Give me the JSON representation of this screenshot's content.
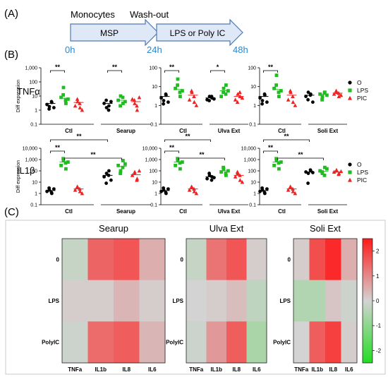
{
  "panel_labels": {
    "a": "(A)",
    "b": "(B)",
    "c": "(C)"
  },
  "timeline": {
    "start_label": "Monocytes",
    "mid_label": "Wash-out",
    "stage1": "MSP",
    "stage2": "LPS or Poly IC",
    "times": [
      "0h",
      "24h",
      "48h"
    ],
    "color_fill": "#dfe8f6",
    "color_stroke": "#4f79b5",
    "color_time": "#2e86c9"
  },
  "row_labels": {
    "tnf": "TNFα",
    "il1b": "IL1β"
  },
  "legend": {
    "items": [
      {
        "label": "O",
        "color": "#000000",
        "marker": "circle"
      },
      {
        "label": "LPS",
        "color": "#22bb22",
        "marker": "square"
      },
      {
        "label": "PIC",
        "color": "#ee2222",
        "marker": "triangle"
      }
    ]
  },
  "chart_data": [
    {
      "id": "tnf-searup",
      "type": "scatter",
      "ylabel": "Diff expression",
      "yscale": "log",
      "ylim": [
        0.1,
        1000
      ],
      "yticks": [
        "0.1",
        "1",
        "10",
        "100",
        "1,000"
      ],
      "groups": [
        "Ctl",
        "Searup"
      ],
      "series": [
        {
          "name": "O",
          "values": [
            [
              2.5,
              1.8,
              3.5,
              1.2,
              4,
              1.5
            ],
            [
              3,
              1.5,
              2,
              5,
              1,
              4
            ]
          ],
          "mean": [
            3,
            3
          ]
        },
        {
          "name": "LPS",
          "values": [
            [
              8,
              40,
              3,
              12,
              5,
              6
            ],
            [
              5,
              10,
              3,
              2,
              8,
              4
            ]
          ],
          "mean": [
            7,
            5
          ]
        },
        {
          "name": "PIC",
          "values": [
            [
              2,
              4,
              1.5,
              6,
              3,
              1
            ],
            [
              6,
              3,
              1,
              5,
              2,
              8
            ]
          ],
          "mean": [
            3.5,
            4
          ]
        }
      ],
      "annotations": [
        {
          "text": "**",
          "from": [
            0,
            0
          ],
          "to": [
            0,
            1
          ]
        },
        {
          "text": "**",
          "from": [
            1,
            0
          ],
          "to": [
            1,
            1
          ]
        }
      ]
    },
    {
      "id": "tnf-ulva",
      "type": "scatter",
      "ylabel": "",
      "yscale": "log",
      "ylim": [
        0.1,
        100
      ],
      "yticks": [
        "0.1",
        "1",
        "10",
        "100"
      ],
      "groups": [
        "Ctl",
        "Ulva Ext"
      ],
      "series": [
        {
          "name": "O",
          "values": [
            [
              2.5,
              1.8,
              3.5,
              1.2,
              4,
              1.5
            ],
            [
              2,
              3,
              2.5,
              1.8,
              3,
              2.2
            ]
          ],
          "mean": [
            3,
            2.5
          ]
        },
        {
          "name": "LPS",
          "values": [
            [
              8,
              25,
              3,
              12,
              5,
              6
            ],
            [
              3,
              8,
              12,
              5,
              4,
              6
            ]
          ],
          "mean": [
            7,
            6
          ]
        },
        {
          "name": "PIC",
          "values": [
            [
              2,
              5,
              1.5,
              6,
              3,
              1
            ],
            [
              2,
              4,
              3,
              1.5,
              5,
              2.5
            ]
          ],
          "mean": [
            3.5,
            3
          ]
        }
      ],
      "annotations": [
        {
          "text": "**",
          "from": [
            0,
            0
          ],
          "to": [
            0,
            1
          ]
        },
        {
          "text": "*",
          "from": [
            1,
            0
          ],
          "to": [
            1,
            1
          ]
        }
      ]
    },
    {
      "id": "tnf-soli",
      "type": "scatter",
      "ylabel": "",
      "yscale": "log",
      "ylim": [
        0.1,
        100
      ],
      "yticks": [
        "0.1",
        "1",
        "10",
        "100"
      ],
      "groups": [
        "Ctl",
        "Soli Ext"
      ],
      "series": [
        {
          "name": "O",
          "values": [
            [
              2.5,
              1.8,
              3.5,
              1.2,
              4,
              1.5
            ],
            [
              3,
              5,
              4,
              2,
              3.5,
              1.5
            ]
          ],
          "mean": [
            3,
            3.5
          ]
        },
        {
          "name": "LPS",
          "values": [
            [
              8,
              40,
              3,
              12,
              5,
              6
            ],
            [
              4,
              3,
              5,
              2,
              4.5,
              3.5
            ]
          ],
          "mean": [
            7,
            4
          ]
        },
        {
          "name": "PIC",
          "values": [
            [
              2,
              5,
              1.5,
              6,
              3,
              1
            ],
            [
              4,
              5,
              3,
              6,
              4.5,
              3.5
            ]
          ],
          "mean": [
            3.5,
            4.5
          ]
        }
      ],
      "annotations": [
        {
          "text": "**",
          "from": [
            0,
            0
          ],
          "to": [
            0,
            1
          ]
        }
      ]
    },
    {
      "id": "il1b-searup",
      "type": "scatter",
      "ylabel": "Diff expression",
      "yscale": "log",
      "ylim": [
        0.1,
        10000
      ],
      "yticks": [
        "0.1",
        "1",
        "10",
        "100",
        "1,000",
        "10,000"
      ],
      "groups": [
        "Ctl",
        "Searup"
      ],
      "series": [
        {
          "name": "O",
          "values": [
            [
              1.5,
              2,
              1,
              3,
              1.2,
              2.5
            ],
            [
              30,
              60,
              100,
              8,
              40,
              15
            ]
          ],
          "mean": [
            1.8,
            40
          ]
        },
        {
          "name": "LPS",
          "values": [
            [
              300,
              800,
              150,
              1200,
              500,
              600
            ],
            [
              300,
              100,
              800,
              60,
              200,
              400
            ]
          ],
          "mean": [
            600,
            250
          ]
        },
        {
          "name": "PIC",
          "values": [
            [
              2,
              3.5,
              1.5,
              4,
              2.5,
              1
            ],
            [
              40,
              80,
              20,
              60,
              15,
              100
            ]
          ],
          "mean": [
            2.5,
            45
          ]
        }
      ],
      "annotations": [
        {
          "text": "**",
          "from": [
            0,
            0
          ],
          "to": [
            0,
            1
          ]
        },
        {
          "text": "**",
          "from": [
            0,
            0
          ],
          "to": [
            1,
            0
          ]
        },
        {
          "text": "**",
          "from": [
            0,
            1
          ],
          "to": [
            1,
            1
          ]
        }
      ]
    },
    {
      "id": "il1b-ulva",
      "type": "scatter",
      "ylabel": "",
      "yscale": "log",
      "ylim": [
        0.1,
        10000
      ],
      "yticks": [
        "0.1",
        "1",
        "10",
        "100",
        "1,000",
        "10,000"
      ],
      "groups": [
        "Ctl",
        "Ulva Ext"
      ],
      "series": [
        {
          "name": "O",
          "values": [
            [
              1.5,
              2,
              1,
              3,
              1.2,
              2.5
            ],
            [
              20,
              40,
              30,
              60,
              15,
              25
            ]
          ],
          "mean": [
            1.8,
            30
          ]
        },
        {
          "name": "LPS",
          "values": [
            [
              300,
              800,
              150,
              1200,
              500,
              600
            ],
            [
              80,
              150,
              40,
              200,
              60,
              100
            ]
          ],
          "mean": [
            600,
            100
          ]
        },
        {
          "name": "PIC",
          "values": [
            [
              2,
              3.5,
              1.5,
              4,
              2.5,
              1
            ],
            [
              30,
              60,
              15,
              80,
              40,
              10
            ]
          ],
          "mean": [
            2.5,
            40
          ]
        }
      ],
      "annotations": [
        {
          "text": "**",
          "from": [
            0,
            0
          ],
          "to": [
            0,
            1
          ]
        },
        {
          "text": "**",
          "from": [
            0,
            0
          ],
          "to": [
            1,
            0
          ]
        },
        {
          "text": "**",
          "from": [
            0,
            1
          ],
          "to": [
            1,
            1
          ]
        }
      ]
    },
    {
      "id": "il1b-soli",
      "type": "scatter",
      "ylabel": "",
      "yscale": "log",
      "ylim": [
        0.1,
        10000
      ],
      "yticks": [
        "0.1",
        "1",
        "10",
        "100",
        "1,000",
        "10,000"
      ],
      "groups": [
        "Ctl",
        "Soli Ext"
      ],
      "series": [
        {
          "name": "O",
          "values": [
            [
              1.5,
              2,
              1,
              3,
              1.2,
              2.5
            ],
            [
              80,
              60,
              100,
              8,
              120,
              70
            ]
          ],
          "mean": [
            1.8,
            80
          ]
        },
        {
          "name": "LPS",
          "values": [
            [
              300,
              800,
              150,
              1200,
              500,
              600
            ],
            [
              100,
              60,
              200,
              80,
              40,
              150
            ]
          ],
          "mean": [
            600,
            90
          ]
        },
        {
          "name": "PIC",
          "values": [
            [
              2,
              3.5,
              1.5,
              4,
              2.5,
              1
            ],
            [
              80,
              120,
              60,
              100,
              50,
              90
            ]
          ],
          "mean": [
            2.5,
            80
          ]
        }
      ],
      "annotations": [
        {
          "text": "**",
          "from": [
            0,
            0
          ],
          "to": [
            0,
            1
          ]
        },
        {
          "text": "**",
          "from": [
            0,
            0
          ],
          "to": [
            1,
            0
          ]
        },
        {
          "text": "**",
          "from": [
            0,
            1
          ],
          "to": [
            1,
            1
          ]
        }
      ]
    },
    {
      "id": "heat-searup",
      "type": "heatmap",
      "title": "Searup",
      "rows": [
        "0",
        "LPS",
        "PolyIC"
      ],
      "cols": [
        "TNFa",
        "IL1b",
        "IL8",
        "IL6"
      ],
      "values": [
        [
          -0.2,
          1.5,
          1.7,
          0.5
        ],
        [
          0.1,
          0.1,
          0.4,
          0.1
        ],
        [
          -0.1,
          1.4,
          1.6,
          0.4
        ]
      ]
    },
    {
      "id": "heat-ulva",
      "type": "heatmap",
      "title": "Ulva Ext",
      "rows": [
        "0",
        "LPS",
        "PolyIC"
      ],
      "cols": [
        "TNFa",
        "IL1b",
        "IL8",
        "IL6"
      ],
      "values": [
        [
          -0.2,
          1.3,
          1.7,
          0.1
        ],
        [
          0.0,
          0.1,
          0.3,
          -0.3
        ],
        [
          -0.1,
          0.8,
          1.6,
          -0.6
        ]
      ]
    },
    {
      "id": "heat-soli",
      "type": "heatmap",
      "title": "Soli Ext",
      "rows": [
        "0",
        "LPS",
        "PolyIC"
      ],
      "cols": [
        "TNFa",
        "IL1b",
        "IL8",
        "IL6"
      ],
      "values": [
        [
          0.1,
          1.8,
          2.3,
          0.5
        ],
        [
          -0.5,
          -0.5,
          0.2,
          -0.1
        ],
        [
          0.0,
          1.6,
          2.0,
          0.1
        ]
      ]
    },
    {
      "id": "colorbar",
      "type": "colorbar",
      "range": [
        -2.5,
        2.5
      ],
      "ticks": [
        "2",
        "1",
        "0",
        "-1",
        "-2"
      ],
      "stops": [
        "#22dd22",
        "#d3d3d3",
        "#ff1a1a"
      ]
    }
  ]
}
